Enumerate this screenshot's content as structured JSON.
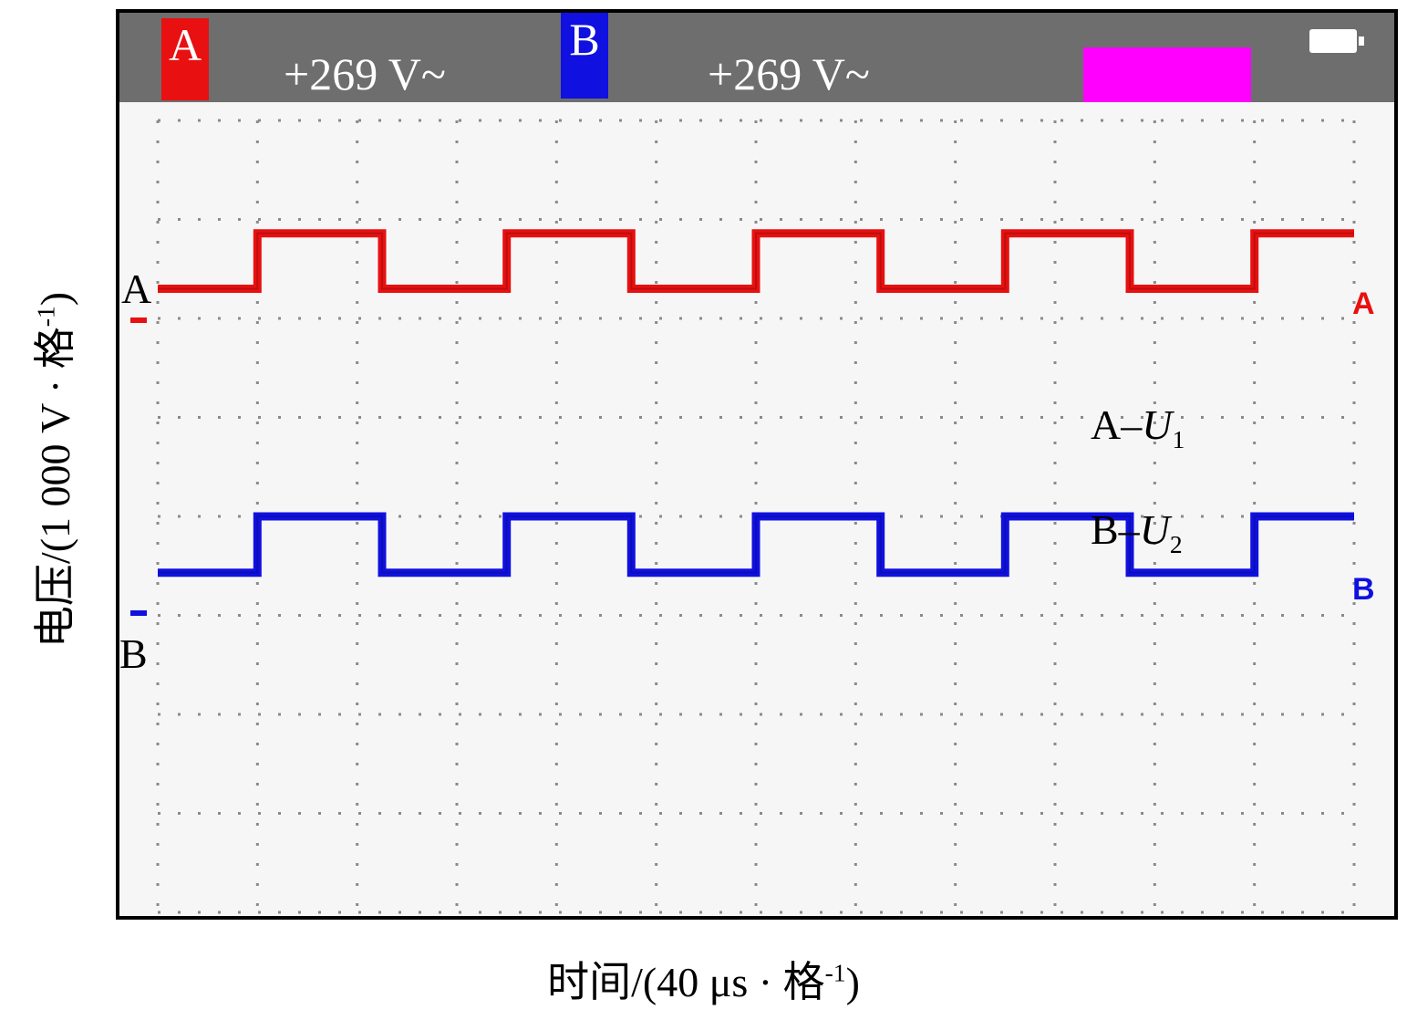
{
  "status_bar": {
    "channel_a": {
      "badge": "A",
      "reading": "+269 V~",
      "color": "#e81010"
    },
    "channel_b": {
      "badge": "B",
      "reading": "+269 V~",
      "color": "#1010e0"
    },
    "highlight_color": "#ff00ff",
    "battery_icon": "battery-icon"
  },
  "side_labels": {
    "a": "A",
    "b": "B"
  },
  "trace_end_markers": {
    "a": "A",
    "b": "B"
  },
  "legend": [
    {
      "prefix": "A–",
      "symbol": "U",
      "subscript": "1"
    },
    {
      "prefix": "B–",
      "symbol": "U",
      "subscript": "2"
    }
  ],
  "chart_data": {
    "type": "line",
    "title": "",
    "xlabel": {
      "text": "时间/(40 μs · 格",
      "sup": "-1",
      "close": ")"
    },
    "ylabel": {
      "text": "电压/(1 000 V · 格",
      "sup": "-1",
      "close": ")"
    },
    "grid": true,
    "grid_divisions": {
      "x": 12,
      "y": 8
    },
    "xlim": [
      0,
      12
    ],
    "ylim": [
      0,
      8
    ],
    "series": [
      {
        "name": "A",
        "color": "#e81010",
        "points": [
          [
            0,
            6.3
          ],
          [
            1,
            6.3
          ],
          [
            1,
            6.86
          ],
          [
            2.25,
            6.86
          ],
          [
            2.25,
            6.3
          ],
          [
            3.5,
            6.3
          ],
          [
            3.5,
            6.86
          ],
          [
            4.75,
            6.86
          ],
          [
            4.75,
            6.3
          ],
          [
            6,
            6.3
          ],
          [
            6,
            6.86
          ],
          [
            7.25,
            6.86
          ],
          [
            7.25,
            6.3
          ],
          [
            8.5,
            6.3
          ],
          [
            8.5,
            6.86
          ],
          [
            9.75,
            6.86
          ],
          [
            9.75,
            6.3
          ],
          [
            11,
            6.3
          ],
          [
            11,
            6.86
          ],
          [
            12,
            6.86
          ]
        ]
      },
      {
        "name": "B",
        "color": "#1010e0",
        "points": [
          [
            0,
            3.43
          ],
          [
            1,
            3.43
          ],
          [
            1,
            4.0
          ],
          [
            2.25,
            4.0
          ],
          [
            2.25,
            3.43
          ],
          [
            3.5,
            3.43
          ],
          [
            3.5,
            4.0
          ],
          [
            4.75,
            4.0
          ],
          [
            4.75,
            3.43
          ],
          [
            6,
            3.43
          ],
          [
            6,
            4.0
          ],
          [
            7.25,
            4.0
          ],
          [
            7.25,
            3.43
          ],
          [
            8.5,
            3.43
          ],
          [
            8.5,
            4.0
          ],
          [
            9.75,
            4.0
          ],
          [
            9.75,
            3.43
          ],
          [
            11,
            3.43
          ],
          [
            11,
            4.0
          ],
          [
            12,
            4.0
          ]
        ]
      }
    ]
  }
}
